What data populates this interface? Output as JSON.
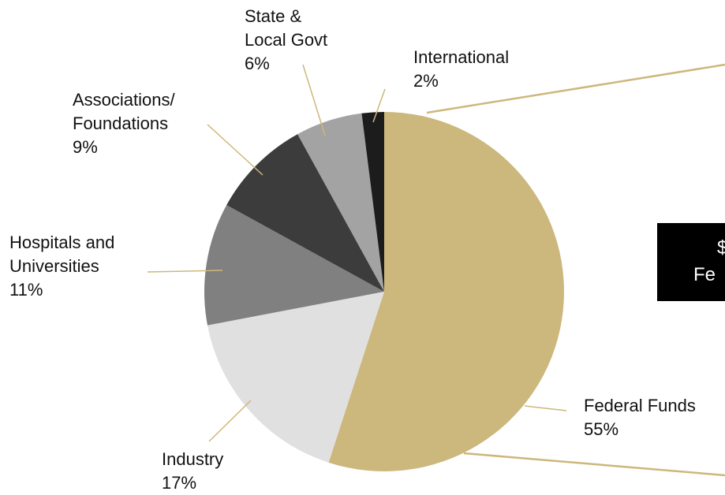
{
  "chart_data": {
    "type": "pie",
    "categories": [
      "Federal Funds",
      "Industry",
      "Hospitals and Universities",
      "Associations/ Foundations",
      "State & Local Govt",
      "International"
    ],
    "values": [
      55,
      17,
      11,
      9,
      6,
      2
    ],
    "value_labels": [
      "55%",
      "17%",
      "11%",
      "9%",
      "6%",
      "2%"
    ],
    "colors": [
      "#ccb77c",
      "#e0e0e0",
      "#808080",
      "#3c3c3c",
      "#a3a3a3",
      "#1c1c1c"
    ],
    "annotation": [
      "$",
      "Fe"
    ]
  }
}
